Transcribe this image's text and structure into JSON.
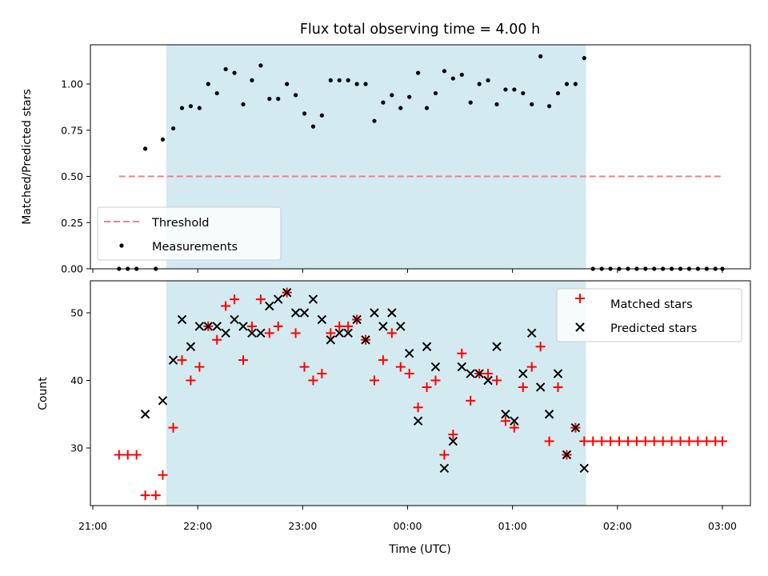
{
  "chart_data": [
    {
      "type": "scatter",
      "title": "Flux total observing time = 4.00 h",
      "xlabel": "",
      "ylabel": "Matched/Predicted stars",
      "xlim": [
        "21:00",
        "03:00"
      ],
      "ylim": [
        0,
        1.2
      ],
      "yticks": [
        "0.00",
        "0.25",
        "0.50",
        "0.75",
        "1.00"
      ],
      "grid": false,
      "shaded_region": {
        "from": "21:42",
        "to": "01:42",
        "color": "#d3eaf0"
      },
      "threshold": {
        "name": "Threshold",
        "value": 0.5,
        "from": "21:15",
        "to": "03:00",
        "color": "#f08080",
        "style": "dashed"
      },
      "legend": {
        "position": "lower-left",
        "entries": [
          "Threshold",
          "Measurements"
        ]
      },
      "series": [
        {
          "name": "Measurements",
          "color": "#000000",
          "marker": "dot",
          "points": [
            [
              "21:15",
              0.0
            ],
            [
              "21:20",
              0.0
            ],
            [
              "21:25",
              0.0
            ],
            [
              "21:30",
              0.65
            ],
            [
              "21:36",
              0.0
            ],
            [
              "21:40",
              0.7
            ],
            [
              "21:46",
              0.76
            ],
            [
              "21:51",
              0.87
            ],
            [
              "21:56",
              0.88
            ],
            [
              "22:01",
              0.87
            ],
            [
              "22:06",
              1.0
            ],
            [
              "22:11",
              0.95
            ],
            [
              "22:16",
              1.08
            ],
            [
              "22:21",
              1.06
            ],
            [
              "22:26",
              0.89
            ],
            [
              "22:31",
              1.02
            ],
            [
              "22:36",
              1.1
            ],
            [
              "22:41",
              0.92
            ],
            [
              "22:46",
              0.92
            ],
            [
              "22:51",
              1.0
            ],
            [
              "22:56",
              0.94
            ],
            [
              "23:01",
              0.84
            ],
            [
              "23:06",
              0.77
            ],
            [
              "23:11",
              0.83
            ],
            [
              "23:16",
              1.02
            ],
            [
              "23:21",
              1.02
            ],
            [
              "23:26",
              1.02
            ],
            [
              "23:31",
              1.0
            ],
            [
              "23:36",
              1.0
            ],
            [
              "23:41",
              0.8
            ],
            [
              "23:46",
              0.9
            ],
            [
              "23:51",
              0.94
            ],
            [
              "23:56",
              0.87
            ],
            [
              "00:01",
              0.93
            ],
            [
              "00:06",
              1.06
            ],
            [
              "00:11",
              0.87
            ],
            [
              "00:16",
              0.95
            ],
            [
              "00:21",
              1.07
            ],
            [
              "00:26",
              1.03
            ],
            [
              "00:31",
              1.05
            ],
            [
              "00:36",
              0.9
            ],
            [
              "00:41",
              1.0
            ],
            [
              "00:46",
              1.02
            ],
            [
              "00:51",
              0.89
            ],
            [
              "00:56",
              0.97
            ],
            [
              "01:01",
              0.97
            ],
            [
              "01:06",
              0.95
            ],
            [
              "01:11",
              0.89
            ],
            [
              "01:16",
              1.15
            ],
            [
              "01:21",
              0.88
            ],
            [
              "01:26",
              0.95
            ],
            [
              "01:31",
              1.0
            ],
            [
              "01:36",
              1.0
            ],
            [
              "01:41",
              1.14
            ],
            [
              "01:46",
              0.0
            ],
            [
              "01:51",
              0.0
            ],
            [
              "01:56",
              0.0
            ],
            [
              "02:01",
              0.0
            ],
            [
              "02:06",
              0.0
            ],
            [
              "02:11",
              0.0
            ],
            [
              "02:16",
              0.0
            ],
            [
              "02:21",
              0.0
            ],
            [
              "02:26",
              0.0
            ],
            [
              "02:31",
              0.0
            ],
            [
              "02:36",
              0.0
            ],
            [
              "02:41",
              0.0
            ],
            [
              "02:46",
              0.0
            ],
            [
              "02:51",
              0.0
            ],
            [
              "02:56",
              0.0
            ],
            [
              "03:00",
              0.0
            ]
          ]
        }
      ]
    },
    {
      "type": "scatter",
      "title": "",
      "xlabel": "Time (UTC)",
      "ylabel": "Count",
      "xlim": [
        "21:00",
        "03:00"
      ],
      "xticks": [
        "21:00",
        "22:00",
        "23:00",
        "00:00",
        "01:00",
        "02:00",
        "03:00"
      ],
      "ylim": [
        21.5,
        55
      ],
      "yticks": [
        "30",
        "40",
        "50"
      ],
      "grid": false,
      "shaded_region": {
        "from": "21:42",
        "to": "01:42",
        "color": "#d3eaf0"
      },
      "legend": {
        "position": "upper-right",
        "entries": [
          "Matched stars",
          "Predicted stars"
        ]
      },
      "series": [
        {
          "name": "Matched stars",
          "color": "#ff0000",
          "marker": "plus",
          "points": [
            [
              "21:15",
              29
            ],
            [
              "21:20",
              29
            ],
            [
              "21:25",
              29
            ],
            [
              "21:30",
              23
            ],
            [
              "21:36",
              23
            ],
            [
              "21:40",
              26
            ],
            [
              "21:46",
              33
            ],
            [
              "21:51",
              43
            ],
            [
              "21:56",
              40
            ],
            [
              "22:01",
              42
            ],
            [
              "22:06",
              48
            ],
            [
              "22:11",
              46
            ],
            [
              "22:16",
              51
            ],
            [
              "22:21",
              52
            ],
            [
              "22:26",
              43
            ],
            [
              "22:31",
              48
            ],
            [
              "22:36",
              52
            ],
            [
              "22:41",
              47
            ],
            [
              "22:46",
              48
            ],
            [
              "22:51",
              53
            ],
            [
              "22:56",
              47
            ],
            [
              "23:01",
              42
            ],
            [
              "23:06",
              40
            ],
            [
              "23:11",
              41
            ],
            [
              "23:16",
              47
            ],
            [
              "23:21",
              48
            ],
            [
              "23:26",
              48
            ],
            [
              "23:31",
              49
            ],
            [
              "23:36",
              46
            ],
            [
              "23:41",
              40
            ],
            [
              "23:46",
              43
            ],
            [
              "23:51",
              47
            ],
            [
              "23:56",
              42
            ],
            [
              "00:01",
              41
            ],
            [
              "00:06",
              36
            ],
            [
              "00:11",
              39
            ],
            [
              "00:16",
              40
            ],
            [
              "00:21",
              29
            ],
            [
              "00:26",
              32
            ],
            [
              "00:31",
              44
            ],
            [
              "00:36",
              37
            ],
            [
              "00:41",
              41
            ],
            [
              "00:46",
              41
            ],
            [
              "00:51",
              40
            ],
            [
              "00:56",
              34
            ],
            [
              "01:01",
              33
            ],
            [
              "01:06",
              39
            ],
            [
              "01:11",
              42
            ],
            [
              "01:16",
              45
            ],
            [
              "01:21",
              31
            ],
            [
              "01:26",
              39
            ],
            [
              "01:31",
              29
            ],
            [
              "01:36",
              33
            ],
            [
              "01:41",
              31
            ],
            [
              "01:46",
              31
            ],
            [
              "01:51",
              31
            ],
            [
              "01:56",
              31
            ],
            [
              "02:01",
              31
            ],
            [
              "02:06",
              31
            ],
            [
              "02:11",
              31
            ],
            [
              "02:16",
              31
            ],
            [
              "02:21",
              31
            ],
            [
              "02:26",
              31
            ],
            [
              "02:31",
              31
            ],
            [
              "02:36",
              31
            ],
            [
              "02:41",
              31
            ],
            [
              "02:46",
              31
            ],
            [
              "02:51",
              31
            ],
            [
              "02:56",
              31
            ],
            [
              "03:00",
              31
            ]
          ]
        },
        {
          "name": "Predicted stars",
          "color": "#000000",
          "marker": "x",
          "points": [
            [
              "21:30",
              35
            ],
            [
              "21:40",
              37
            ],
            [
              "21:46",
              43
            ],
            [
              "21:51",
              49
            ],
            [
              "21:56",
              45
            ],
            [
              "22:01",
              48
            ],
            [
              "22:06",
              48
            ],
            [
              "22:11",
              48
            ],
            [
              "22:16",
              47
            ],
            [
              "22:21",
              49
            ],
            [
              "22:26",
              48
            ],
            [
              "22:31",
              47
            ],
            [
              "22:36",
              47
            ],
            [
              "22:41",
              51
            ],
            [
              "22:46",
              52
            ],
            [
              "22:51",
              53
            ],
            [
              "22:56",
              50
            ],
            [
              "23:01",
              50
            ],
            [
              "23:06",
              52
            ],
            [
              "23:11",
              49
            ],
            [
              "23:16",
              46
            ],
            [
              "23:21",
              47
            ],
            [
              "23:26",
              47
            ],
            [
              "23:31",
              49
            ],
            [
              "23:36",
              46
            ],
            [
              "23:41",
              50
            ],
            [
              "23:46",
              48
            ],
            [
              "23:51",
              50
            ],
            [
              "23:56",
              48
            ],
            [
              "00:01",
              44
            ],
            [
              "00:06",
              34
            ],
            [
              "00:11",
              45
            ],
            [
              "00:16",
              42
            ],
            [
              "00:21",
              27
            ],
            [
              "00:26",
              31
            ],
            [
              "00:31",
              42
            ],
            [
              "00:36",
              41
            ],
            [
              "00:41",
              41
            ],
            [
              "00:46",
              40
            ],
            [
              "00:51",
              45
            ],
            [
              "00:56",
              35
            ],
            [
              "01:01",
              34
            ],
            [
              "01:06",
              41
            ],
            [
              "01:11",
              47
            ],
            [
              "01:16",
              39
            ],
            [
              "01:21",
              35
            ],
            [
              "01:26",
              41
            ],
            [
              "01:31",
              29
            ],
            [
              "01:36",
              33
            ],
            [
              "01:41",
              27
            ]
          ]
        }
      ]
    }
  ]
}
